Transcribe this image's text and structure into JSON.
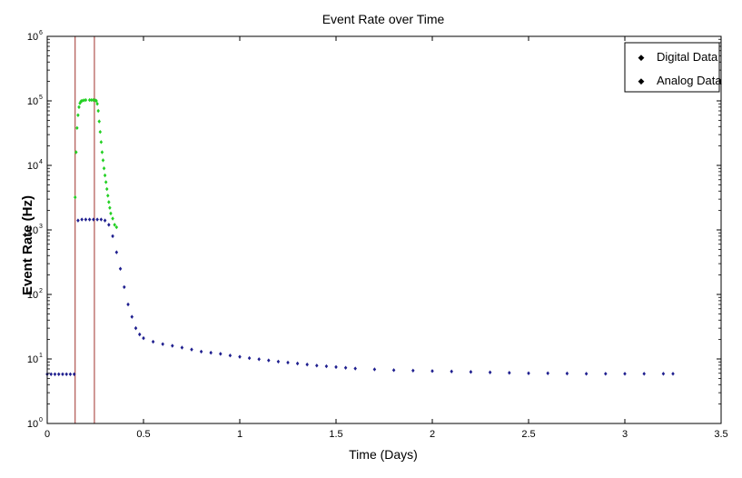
{
  "chart_data": {
    "type": "scatter",
    "title": "Event Rate over Time",
    "xlabel": "Time (Days)",
    "ylabel": "Event Rate (Hz)",
    "xlim": [
      0,
      3.5
    ],
    "ylim": [
      1,
      1000000
    ],
    "y_scale": "log",
    "x_ticks": [
      "0",
      "0.5",
      "1",
      "1.5",
      "2",
      "2.5",
      "3",
      "3.5"
    ],
    "x_tick_values": [
      0,
      0.5,
      1,
      1.5,
      2,
      2.5,
      3,
      3.5
    ],
    "y_ticks": [
      {
        "base": "10",
        "exp": "0",
        "value": 1
      },
      {
        "base": "10",
        "exp": "1",
        "value": 10
      },
      {
        "base": "10",
        "exp": "2",
        "value": 100
      },
      {
        "base": "10",
        "exp": "3",
        "value": 1000
      },
      {
        "base": "10",
        "exp": "4",
        "value": 10000
      },
      {
        "base": "10",
        "exp": "5",
        "value": 100000
      },
      {
        "base": "10",
        "exp": "6",
        "value": 1000000
      }
    ],
    "grid": false,
    "legend_position": "top-right",
    "vertical_lines": [
      {
        "x": 0.145,
        "color": "#a0322d"
      },
      {
        "x": 0.245,
        "color": "#a0322d"
      }
    ],
    "series": [
      {
        "name": "Digital Data",
        "color": "#1f1f8f",
        "points": [
          [
            0.0,
            5.8
          ],
          [
            0.02,
            5.8
          ],
          [
            0.04,
            5.8
          ],
          [
            0.06,
            5.8
          ],
          [
            0.08,
            5.8
          ],
          [
            0.1,
            5.8
          ],
          [
            0.12,
            5.8
          ],
          [
            0.14,
            5.8
          ],
          [
            0.16,
            1400
          ],
          [
            0.18,
            1450
          ],
          [
            0.2,
            1450
          ],
          [
            0.22,
            1450
          ],
          [
            0.24,
            1450
          ],
          [
            0.26,
            1450
          ],
          [
            0.28,
            1450
          ],
          [
            0.3,
            1400
          ],
          [
            0.32,
            1200
          ],
          [
            0.34,
            800
          ],
          [
            0.36,
            450
          ],
          [
            0.38,
            250
          ],
          [
            0.4,
            130
          ],
          [
            0.42,
            70
          ],
          [
            0.44,
            45
          ],
          [
            0.46,
            30
          ],
          [
            0.48,
            24
          ],
          [
            0.5,
            21
          ],
          [
            0.55,
            18.5
          ],
          [
            0.6,
            17
          ],
          [
            0.65,
            16
          ],
          [
            0.7,
            15
          ],
          [
            0.75,
            14
          ],
          [
            0.8,
            13
          ],
          [
            0.85,
            12.5
          ],
          [
            0.9,
            12
          ],
          [
            0.95,
            11.3
          ],
          [
            1.0,
            10.8
          ],
          [
            1.05,
            10.3
          ],
          [
            1.1,
            9.9
          ],
          [
            1.15,
            9.5
          ],
          [
            1.2,
            9.1
          ],
          [
            1.25,
            8.8
          ],
          [
            1.3,
            8.5
          ],
          [
            1.35,
            8.2
          ],
          [
            1.4,
            7.9
          ],
          [
            1.45,
            7.7
          ],
          [
            1.5,
            7.5
          ],
          [
            1.55,
            7.3
          ],
          [
            1.6,
            7.1
          ],
          [
            1.7,
            6.9
          ],
          [
            1.8,
            6.7
          ],
          [
            1.9,
            6.6
          ],
          [
            2.0,
            6.5
          ],
          [
            2.1,
            6.4
          ],
          [
            2.2,
            6.3
          ],
          [
            2.3,
            6.2
          ],
          [
            2.4,
            6.1
          ],
          [
            2.5,
            6.0
          ],
          [
            2.6,
            6.0
          ],
          [
            2.7,
            5.95
          ],
          [
            2.8,
            5.9
          ],
          [
            2.9,
            5.9
          ],
          [
            3.0,
            5.9
          ],
          [
            3.1,
            5.9
          ],
          [
            3.2,
            5.9
          ],
          [
            3.25,
            5.9
          ]
        ]
      },
      {
        "name": "Analog Data",
        "color": "#22d022",
        "points": [
          [
            0.145,
            3200
          ],
          [
            0.15,
            16000
          ],
          [
            0.155,
            38000
          ],
          [
            0.16,
            60000
          ],
          [
            0.165,
            80000
          ],
          [
            0.17,
            92000
          ],
          [
            0.175,
            98000
          ],
          [
            0.18,
            100000
          ],
          [
            0.19,
            102000
          ],
          [
            0.2,
            103000
          ],
          [
            0.22,
            103000
          ],
          [
            0.23,
            103000
          ],
          [
            0.24,
            103000
          ],
          [
            0.25,
            102000
          ],
          [
            0.255,
            100000
          ],
          [
            0.26,
            90000
          ],
          [
            0.265,
            70000
          ],
          [
            0.27,
            48000
          ],
          [
            0.275,
            33000
          ],
          [
            0.28,
            23000
          ],
          [
            0.285,
            16000
          ],
          [
            0.29,
            12000
          ],
          [
            0.295,
            9000
          ],
          [
            0.3,
            7000
          ],
          [
            0.305,
            5500
          ],
          [
            0.31,
            4300
          ],
          [
            0.315,
            3400
          ],
          [
            0.32,
            2700
          ],
          [
            0.325,
            2200
          ],
          [
            0.33,
            1800
          ],
          [
            0.34,
            1500
          ],
          [
            0.35,
            1200
          ],
          [
            0.36,
            1100
          ]
        ]
      }
    ]
  }
}
